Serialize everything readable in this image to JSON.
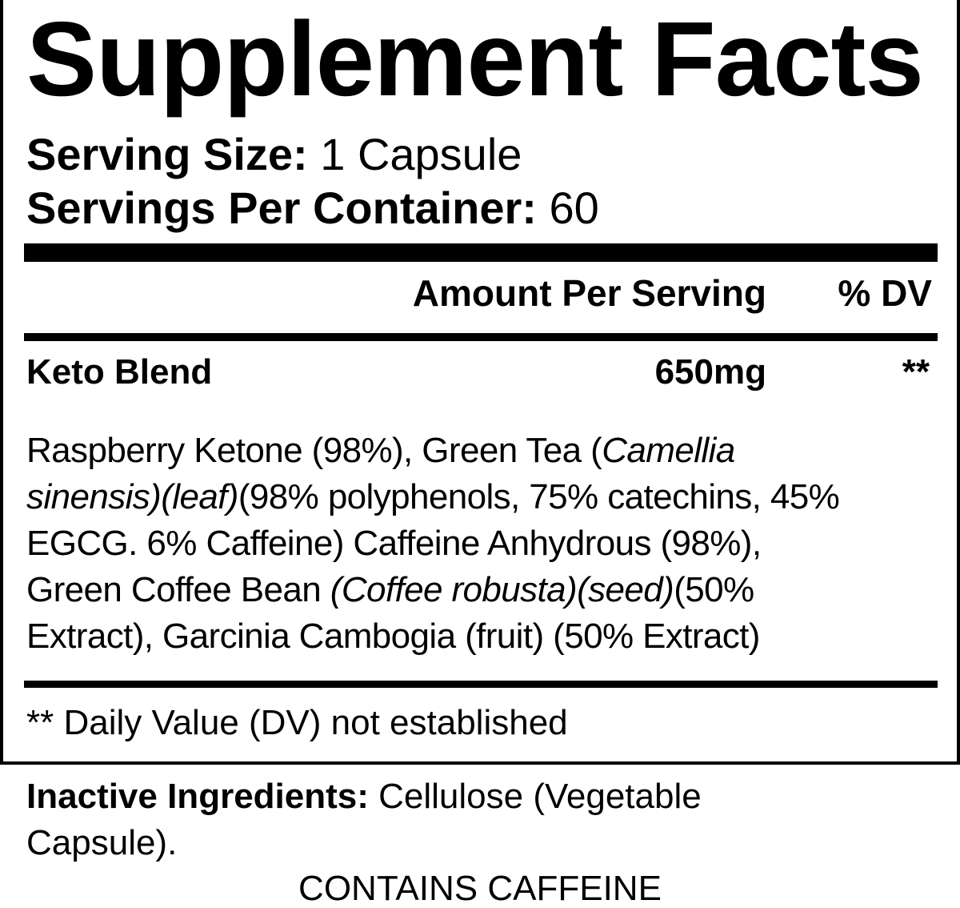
{
  "title": "Supplement Facts",
  "serving_size": {
    "label": "Serving Size:",
    "value": "1 Capsule"
  },
  "servings_per_container": {
    "label": "Servings Per Container:",
    "value": "60"
  },
  "header": {
    "amount": "Amount Per Serving",
    "dv": "% DV"
  },
  "blend": {
    "name": "Keto Blend",
    "amount": "650mg",
    "dv": "**"
  },
  "ingredients_lines": [
    [
      {
        "text": "Raspberry Ketone (98%), Green Tea (",
        "italic": false
      },
      {
        "text": "Camellia",
        "italic": true
      }
    ],
    [
      {
        "text": "sinensis)(leaf)",
        "italic": true
      },
      {
        "text": "(98% polyphenols, 75% catechins, 45%",
        "italic": false
      }
    ],
    [
      {
        "text": "EGCG. 6% Caffeine) Caffeine Anhydrous (98%),",
        "italic": false
      }
    ],
    [
      {
        "text": "Green Coffee Bean ",
        "italic": false
      },
      {
        "text": "(Coffee robusta)(seed)",
        "italic": true
      },
      {
        "text": "(50%",
        "italic": false
      }
    ],
    [
      {
        "text": "Extract), Garcinia Cambogia (fruit) (50% Extract)",
        "italic": false
      }
    ]
  ],
  "footnote": "** Daily Value (DV) not established",
  "inactive": {
    "label": "Inactive Ingredients:",
    "value_line1": " Cellulose (Vegetable",
    "value_line2": "Capsule)."
  },
  "warning": "CONTAINS CAFFEINE"
}
